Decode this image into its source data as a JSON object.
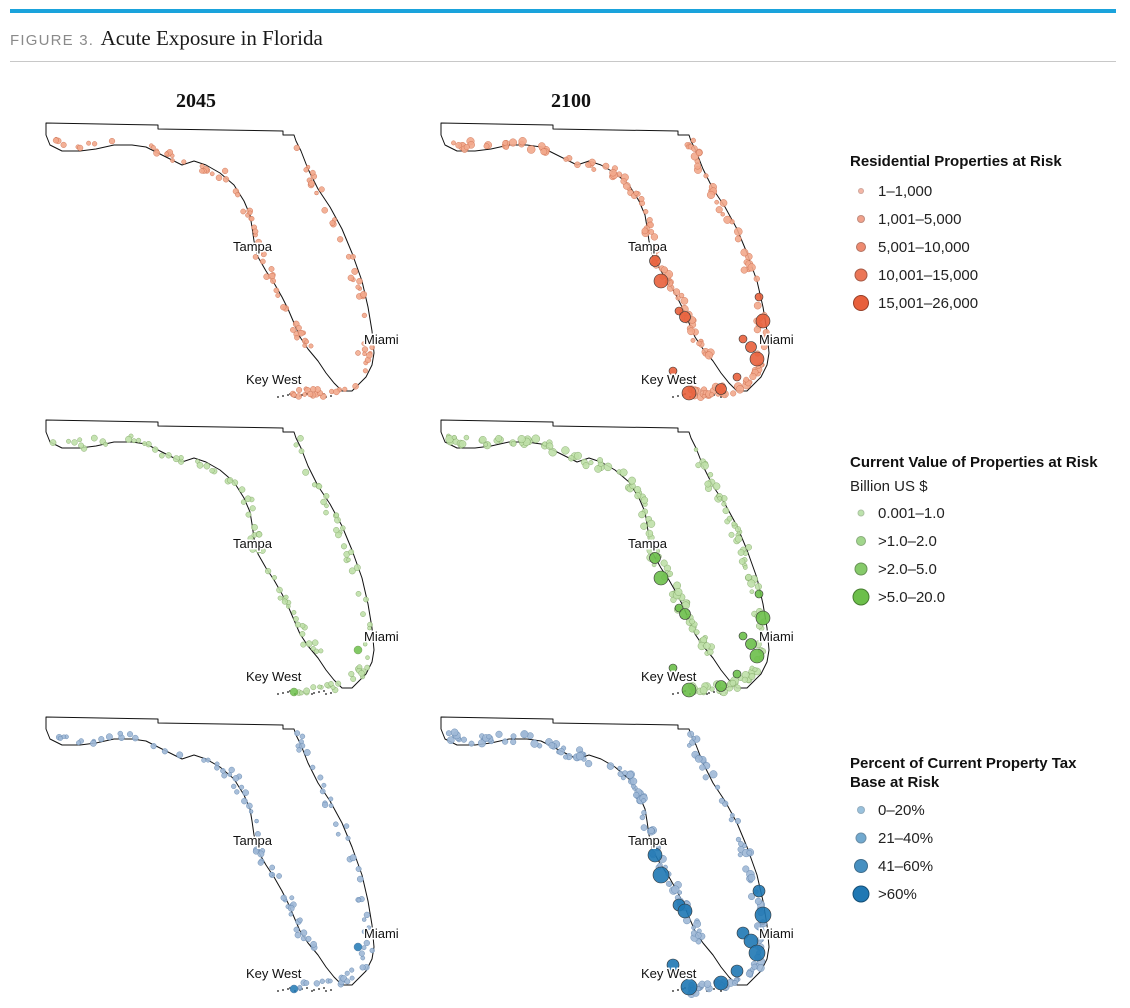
{
  "figure": {
    "label": "FIGURE 3.",
    "title": "Acute Exposure in Florida"
  },
  "columns": [
    "2045",
    "2100"
  ],
  "city_labels": {
    "tampa": "Tampa",
    "miami": "Miami",
    "key_west": "Key West"
  },
  "legends": [
    {
      "title": "Residential Properties at Risk",
      "subtitle": "",
      "color": "#e8603c",
      "items": [
        "1–1,000",
        "1,001–5,000",
        "5,001–10,000",
        "10,001–15,000",
        "15,001–26,000"
      ]
    },
    {
      "title": "Current Value of Properties at Risk",
      "subtitle": "Billion US $",
      "color": "#6cbf4a",
      "items": [
        "0.001–1.0",
        ">1.0–2.0",
        ">2.0–5.0",
        ">5.0–20.0"
      ]
    },
    {
      "title": "Percent of Current Property Tax Base at Risk",
      "subtitle": "",
      "color": "#1f78b4",
      "items": [
        "0–20%",
        "21–40%",
        "41–60%",
        ">60%"
      ]
    }
  ]
}
